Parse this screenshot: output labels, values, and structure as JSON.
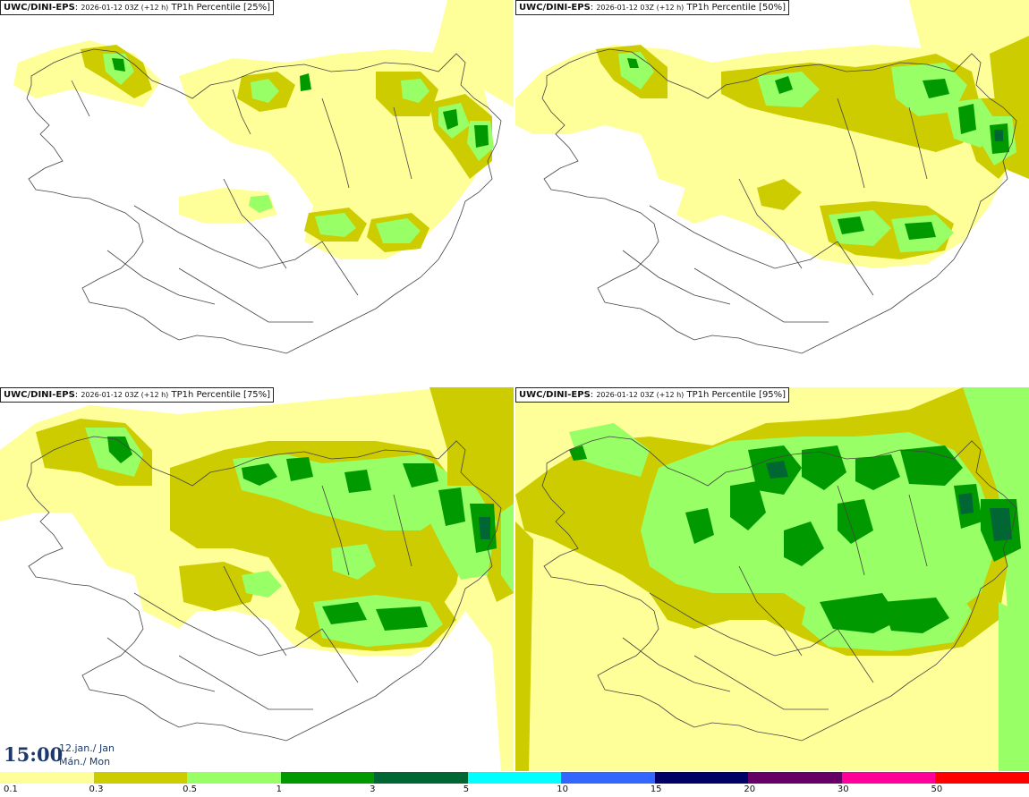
{
  "colors": {
    "c01": "#ffff99",
    "c03": "#cccc00",
    "c05": "#99ff66",
    "c1": "#009900",
    "c3": "#006633",
    "c5": "#00ffff",
    "c10": "#3366ff",
    "c15": "#000066",
    "c20": "#660066",
    "c30": "#ff0099",
    "c50": "#ff0000"
  },
  "panels": [
    {
      "source": "UWC/DINI-EPS",
      "run": "2026-01-12 03Z (+12 h)",
      "field": "TP1h Percentile",
      "percentile": "[25%]"
    },
    {
      "source": "UWC/DINI-EPS",
      "run": "2026-01-12 03Z (+12 h)",
      "field": "TP1h Percentile",
      "percentile": "[50%]"
    },
    {
      "source": "UWC/DINI-EPS",
      "run": "2026-01-12 03Z (+12 h)",
      "field": "TP1h Percentile",
      "percentile": "[75%]"
    },
    {
      "source": "UWC/DINI-EPS",
      "run": "2026-01-12 03Z (+12 h)",
      "field": "TP1h Percentile",
      "percentile": "[95%]"
    }
  ],
  "time": {
    "hhmm": "15:00",
    "date": "12.jan./ Jan",
    "day": "Mán./ Mon"
  },
  "legend": {
    "ticks": [
      "0.1",
      "0.3",
      "0.5",
      "1",
      "3",
      "5",
      "10",
      "15",
      "20",
      "30",
      "50"
    ],
    "colors": [
      "#ffff99",
      "#cccc00",
      "#99ff66",
      "#009900",
      "#006633",
      "#00ffff",
      "#3366ff",
      "#000066",
      "#660066",
      "#ff0099",
      "#ff0000"
    ]
  }
}
